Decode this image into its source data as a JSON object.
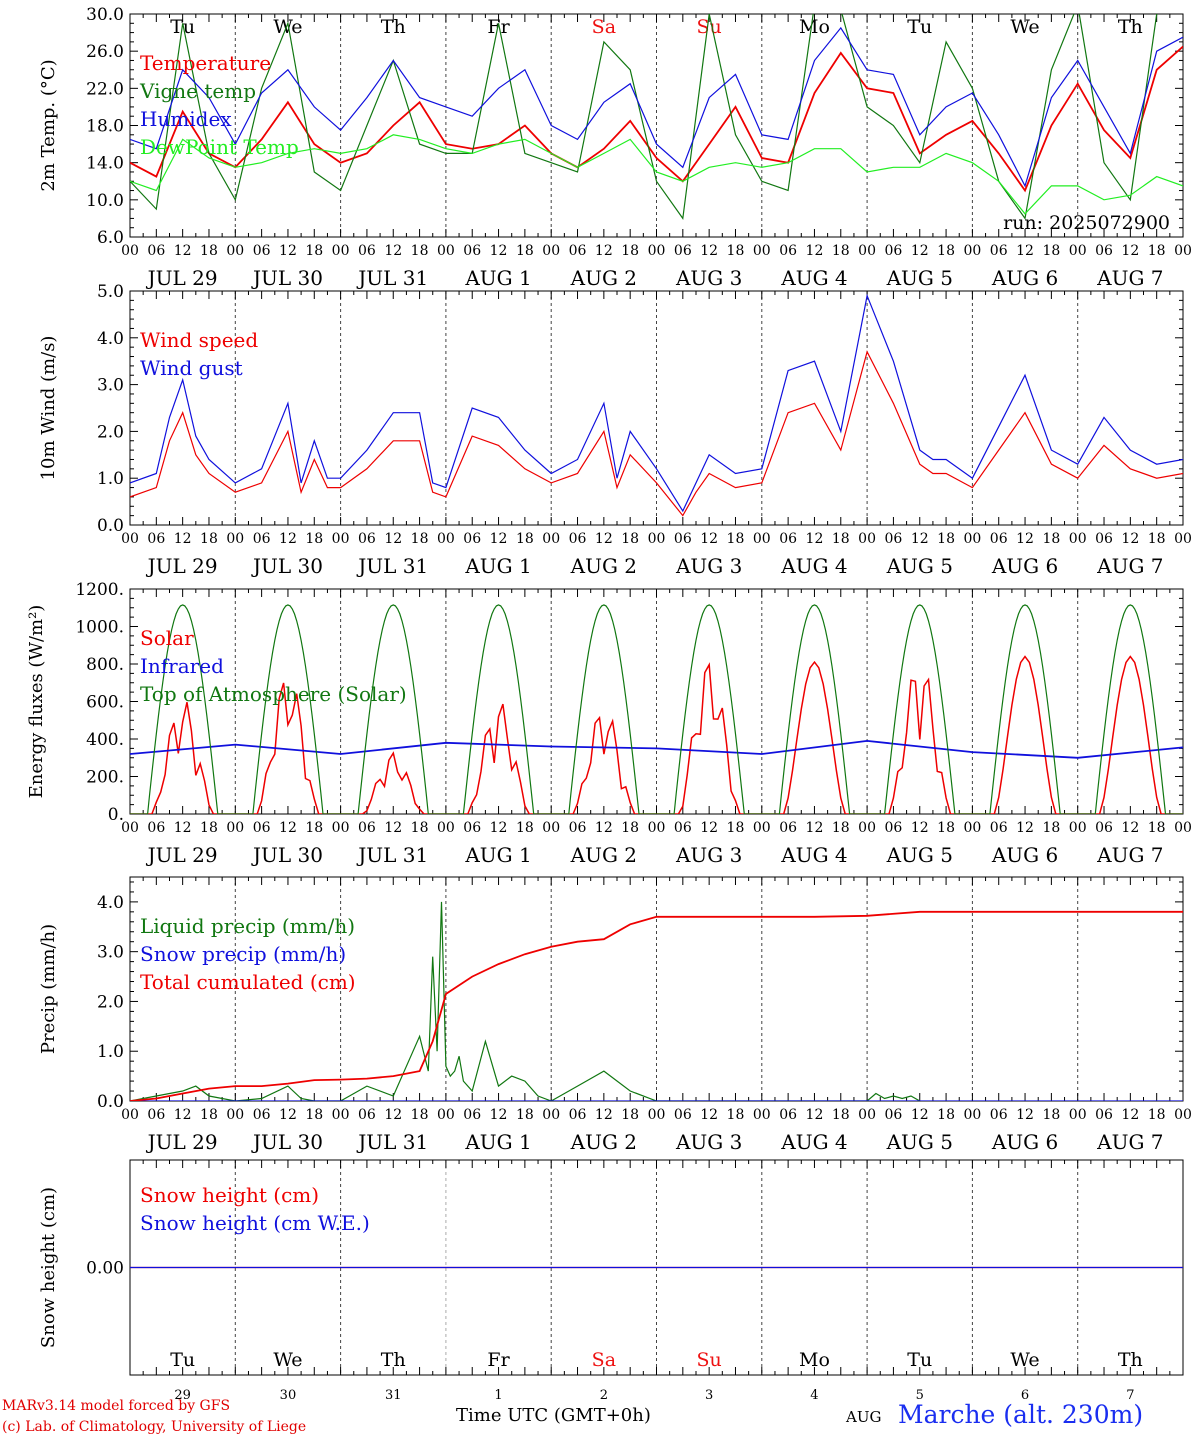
{
  "colors": {
    "red": "#ee0000",
    "dark_green": "#117711",
    "blue": "#1010dd",
    "light_green": "#22ee22",
    "grid": "#444444",
    "weekend": "#ee1111"
  },
  "weekdays": [
    {
      "label": "Tu",
      "weekend": false
    },
    {
      "label": "We",
      "weekend": false
    },
    {
      "label": "Th",
      "weekend": false
    },
    {
      "label": "Fr",
      "weekend": false
    },
    {
      "label": "Sa",
      "weekend": true
    },
    {
      "label": "Su",
      "weekend": true
    },
    {
      "label": "Mo",
      "weekend": false
    },
    {
      "label": "Tu",
      "weekend": false
    },
    {
      "label": "We",
      "weekend": false
    },
    {
      "label": "Th",
      "weekend": false
    }
  ],
  "date_labels": [
    "JUL 29",
    "JUL 30",
    "JUL 31",
    "AUG  1",
    "AUG  2",
    "AUG  3",
    "AUG  4",
    "AUG  5",
    "AUG  6",
    "AUG  7"
  ],
  "day_numbers": [
    "29",
    "30",
    "31",
    "1",
    "2",
    "3",
    "4",
    "5",
    "6",
    "7"
  ],
  "hour_ticks": [
    "00",
    "06",
    "12",
    "18"
  ],
  "hour_end": "00",
  "footer": {
    "credit1": "MARv3.14 model forced by GFS",
    "credit2": "(c) Lab. of Climatology, University of Liege",
    "xlabel": "Time UTC (GMT+0h)",
    "month": "AUG",
    "station": "Marche (alt. 230m)"
  },
  "chart_data": [
    {
      "type": "line",
      "ylabel": "2m Temp. (°C)",
      "ylim": [
        6,
        30
      ],
      "yticks": [
        "6.0",
        "10.0",
        "14.0",
        "18.0",
        "22.0",
        "26.0",
        "30.0"
      ],
      "run_label": "run: 2025072900",
      "series": [
        {
          "name": "Temperature",
          "color": "#ee0000",
          "x": [
            0,
            6,
            12,
            18,
            24,
            30,
            36,
            42,
            48,
            54,
            60,
            66,
            72,
            78,
            84,
            90,
            96,
            102,
            108,
            114,
            120,
            126,
            132,
            138,
            144,
            150,
            156,
            162,
            168,
            174,
            180,
            186,
            192,
            198,
            204,
            210,
            216,
            222,
            228,
            234,
            240
          ],
          "values": [
            14.0,
            12.5,
            19.5,
            15.0,
            13.5,
            16.5,
            20.5,
            16.0,
            14.0,
            15.0,
            18.0,
            20.5,
            16.0,
            15.5,
            16.0,
            18.0,
            15.0,
            13.5,
            15.5,
            18.5,
            14.5,
            12.0,
            16.0,
            20.0,
            14.5,
            14.0,
            21.5,
            25.8,
            22.0,
            21.5,
            15.0,
            17.0,
            18.5,
            15.0,
            11.0,
            18.0,
            22.5,
            17.5,
            14.5,
            24.0,
            26.5
          ]
        },
        {
          "name": "Vigne temp",
          "color": "#117711",
          "x": [
            0,
            6,
            12,
            18,
            24,
            30,
            36,
            42,
            48,
            54,
            60,
            66,
            72,
            78,
            84,
            90,
            96,
            102,
            108,
            114,
            120,
            126,
            132,
            138,
            144,
            150,
            156,
            162,
            168,
            174,
            180,
            186,
            192,
            198,
            204,
            210,
            216,
            222,
            228,
            234,
            240
          ],
          "values": [
            12.0,
            9.0,
            29.0,
            15.0,
            10.0,
            22.0,
            29.0,
            13.0,
            11.0,
            18.0,
            25.0,
            16.0,
            15.0,
            15.0,
            29.0,
            15.0,
            14.0,
            13.0,
            27.0,
            24.0,
            12.0,
            8.0,
            30.0,
            17.0,
            12.0,
            11.0,
            31.0,
            30.5,
            20.0,
            18.0,
            14.0,
            27.0,
            22.0,
            12.0,
            8.0,
            24.0,
            31.0,
            14.0,
            10.0,
            30.0,
            33.0
          ]
        },
        {
          "name": "Humidex",
          "color": "#1010dd",
          "x": [
            0,
            6,
            12,
            18,
            24,
            30,
            36,
            42,
            48,
            54,
            60,
            66,
            72,
            78,
            84,
            90,
            96,
            102,
            108,
            114,
            120,
            126,
            132,
            138,
            144,
            150,
            156,
            162,
            168,
            174,
            180,
            186,
            192,
            198,
            204,
            210,
            216,
            222,
            228,
            234,
            240
          ],
          "values": [
            16.5,
            15.5,
            24.0,
            21.0,
            16.0,
            21.5,
            24.0,
            20.0,
            17.5,
            21.0,
            25.0,
            21.0,
            20.0,
            19.0,
            22.0,
            24.0,
            18.0,
            16.5,
            20.5,
            22.5,
            16.0,
            13.5,
            21.0,
            23.5,
            17.0,
            16.5,
            25.0,
            28.5,
            24.0,
            23.5,
            17.0,
            20.0,
            21.5,
            17.0,
            11.5,
            21.0,
            25.0,
            20.0,
            15.0,
            26.0,
            27.5
          ]
        },
        {
          "name": "DewPoint Temp",
          "color": "#22ee22",
          "x": [
            0,
            6,
            12,
            18,
            24,
            30,
            36,
            42,
            48,
            54,
            60,
            66,
            72,
            78,
            84,
            90,
            96,
            102,
            108,
            114,
            120,
            126,
            132,
            138,
            144,
            150,
            156,
            162,
            168,
            174,
            180,
            186,
            192,
            198,
            204,
            210,
            216,
            222,
            228,
            234,
            240
          ],
          "values": [
            12.0,
            11.0,
            16.5,
            14.5,
            13.5,
            14.0,
            15.0,
            15.5,
            15.0,
            15.5,
            17.0,
            16.5,
            15.5,
            15.0,
            16.0,
            16.5,
            15.0,
            13.5,
            15.0,
            16.5,
            13.0,
            12.0,
            13.5,
            14.0,
            13.5,
            14.0,
            15.5,
            15.5,
            13.0,
            13.5,
            13.5,
            15.0,
            14.0,
            12.0,
            8.5,
            11.5,
            11.5,
            10.0,
            10.5,
            12.5,
            11.5
          ]
        }
      ]
    },
    {
      "type": "line",
      "ylabel": "10m Wind (m/s)",
      "ylim": [
        0,
        5
      ],
      "yticks": [
        "0.0",
        "1.0",
        "2.0",
        "3.0",
        "4.0",
        "5.0"
      ],
      "series": [
        {
          "name": "Wind speed",
          "color": "#ee0000",
          "x": [
            0,
            6,
            9,
            12,
            15,
            18,
            24,
            30,
            36,
            39,
            42,
            45,
            48,
            54,
            60,
            66,
            69,
            72,
            78,
            84,
            90,
            96,
            102,
            108,
            111,
            114,
            120,
            126,
            129,
            132,
            138,
            144,
            150,
            156,
            162,
            168,
            174,
            180,
            183,
            186,
            192,
            198,
            204,
            210,
            216,
            222,
            228,
            234,
            240
          ],
          "values": [
            0.6,
            0.8,
            1.8,
            2.4,
            1.5,
            1.1,
            0.7,
            0.9,
            2.0,
            0.7,
            1.4,
            0.8,
            0.8,
            1.2,
            1.8,
            1.8,
            0.7,
            0.6,
            1.9,
            1.7,
            1.2,
            0.9,
            1.1,
            2.0,
            0.8,
            1.5,
            0.9,
            0.2,
            0.7,
            1.1,
            0.8,
            0.9,
            2.4,
            2.6,
            1.6,
            3.7,
            2.6,
            1.3,
            1.1,
            1.1,
            0.8,
            1.6,
            2.4,
            1.3,
            1.0,
            1.7,
            1.2,
            1.0,
            1.1
          ]
        },
        {
          "name": "Wind gust",
          "color": "#1010dd",
          "x": [
            0,
            6,
            9,
            12,
            15,
            18,
            24,
            30,
            36,
            39,
            42,
            45,
            48,
            54,
            60,
            66,
            69,
            72,
            78,
            84,
            90,
            96,
            102,
            108,
            111,
            114,
            120,
            126,
            129,
            132,
            138,
            144,
            150,
            156,
            162,
            168,
            174,
            180,
            183,
            186,
            192,
            198,
            204,
            210,
            216,
            222,
            228,
            234,
            240
          ],
          "values": [
            0.9,
            1.1,
            2.3,
            3.1,
            1.9,
            1.4,
            0.9,
            1.2,
            2.6,
            0.9,
            1.8,
            1.0,
            1.0,
            1.6,
            2.4,
            2.4,
            0.9,
            0.8,
            2.5,
            2.3,
            1.6,
            1.1,
            1.4,
            2.6,
            1.0,
            2.0,
            1.2,
            0.3,
            0.9,
            1.5,
            1.1,
            1.2,
            3.3,
            3.5,
            2.0,
            4.9,
            3.5,
            1.6,
            1.4,
            1.4,
            1.0,
            2.1,
            3.2,
            1.6,
            1.3,
            2.3,
            1.6,
            1.3,
            1.4
          ]
        }
      ]
    },
    {
      "type": "line",
      "ylabel": "Energy fluxes (W/m²)",
      "ylim": [
        0,
        1200
      ],
      "yticks": [
        "0.",
        "200.",
        "400.",
        "600.",
        "800.",
        "1000.",
        "1200."
      ],
      "series": [
        {
          "name": "Solar",
          "color": "#ee0000",
          "peaks": [
            620,
            760,
            330,
            610,
            580,
            830,
            810,
            840,
            840,
            840
          ],
          "cloudy": [
            true,
            true,
            true,
            true,
            true,
            true,
            false,
            true,
            false,
            false
          ]
        },
        {
          "name": "Infrared",
          "color": "#1010dd",
          "x": [
            0,
            24,
            48,
            72,
            96,
            120,
            144,
            168,
            192,
            216,
            240
          ],
          "values": [
            320,
            370,
            320,
            380,
            360,
            350,
            320,
            390,
            330,
            300,
            355
          ]
        },
        {
          "name": "Top of Atmosphere (Solar)",
          "color": "#117711",
          "peak": 1115
        }
      ]
    },
    {
      "type": "line",
      "ylabel": "Precip (mm/h)",
      "ylim": [
        0,
        4.5
      ],
      "yticks": [
        "0.0",
        "1.0",
        "2.0",
        "3.0",
        "4.0"
      ],
      "series": [
        {
          "name": "Liquid precip (mm/h)",
          "color": "#117711",
          "x": [
            0,
            6,
            9,
            12,
            15,
            18,
            24,
            30,
            36,
            39,
            42,
            48,
            54,
            60,
            66,
            68,
            69,
            70,
            71,
            72,
            73,
            74,
            75,
            76,
            78,
            81,
            84,
            87,
            90,
            93,
            96,
            102,
            108,
            114,
            120,
            126,
            168,
            170,
            172,
            174,
            176,
            178,
            180
          ],
          "values": [
            0,
            0.1,
            0.15,
            0.2,
            0.3,
            0.1,
            0,
            0.05,
            0.3,
            0.05,
            0,
            0,
            0.3,
            0.1,
            1.3,
            0.6,
            2.9,
            1.0,
            4.0,
            0.7,
            0.5,
            0.6,
            0.9,
            0.4,
            0.2,
            1.2,
            0.3,
            0.5,
            0.4,
            0.1,
            0,
            0.3,
            0.6,
            0.2,
            0,
            0,
            0,
            0.15,
            0.05,
            0.1,
            0.05,
            0.1,
            0
          ]
        },
        {
          "name": "Snow precip (mm/h)",
          "color": "#1010dd",
          "x": [
            0,
            240
          ],
          "values": [
            0,
            0
          ]
        },
        {
          "name": "Total cumulated (cm)",
          "color": "#ee0000",
          "x": [
            0,
            6,
            12,
            18,
            24,
            30,
            36,
            42,
            48,
            54,
            60,
            66,
            69,
            72,
            78,
            84,
            90,
            96,
            102,
            108,
            114,
            120,
            126,
            132,
            144,
            156,
            168,
            180,
            192,
            204,
            216,
            228,
            240
          ],
          "values": [
            0,
            0.05,
            0.15,
            0.25,
            0.3,
            0.3,
            0.35,
            0.42,
            0.43,
            0.45,
            0.5,
            0.6,
            1.2,
            2.15,
            2.5,
            2.75,
            2.95,
            3.1,
            3.2,
            3.25,
            3.55,
            3.7,
            3.7,
            3.7,
            3.7,
            3.7,
            3.72,
            3.8,
            3.8,
            3.8,
            3.8,
            3.8,
            3.8
          ]
        }
      ]
    },
    {
      "type": "line",
      "ylabel": "Snow height (cm)",
      "ylim": [
        -1,
        1
      ],
      "yticks": [
        "0.00"
      ],
      "series": [
        {
          "name": "Snow height (cm)",
          "color": "#ee0000",
          "x": [
            0,
            240
          ],
          "values": [
            0,
            0
          ]
        },
        {
          "name": "Snow height (cm W.E.)",
          "color": "#1010dd",
          "x": [
            0,
            240
          ],
          "values": [
            0,
            0
          ]
        }
      ]
    }
  ]
}
